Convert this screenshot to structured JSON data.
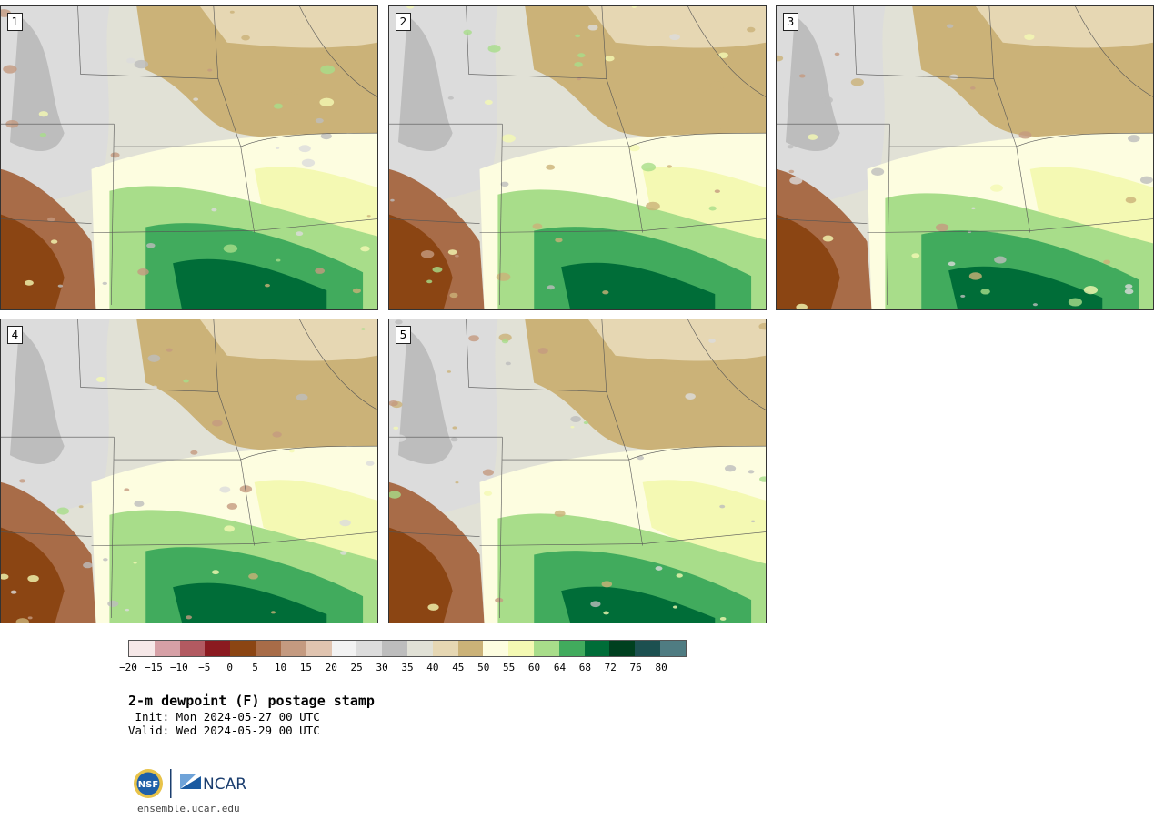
{
  "panels": [
    {
      "label": "1"
    },
    {
      "label": "2"
    },
    {
      "label": "3"
    },
    {
      "label": "4"
    },
    {
      "label": "5"
    }
  ],
  "colorbar": {
    "colors": [
      "#f6e8e8",
      "#d6a0a6",
      "#b25a61",
      "#8b1a20",
      "#8b4513",
      "#a86c48",
      "#c49a80",
      "#e0c4b0",
      "#f2f2f2",
      "#dcdcdc",
      "#bdbdbd",
      "#e1e1d6",
      "#e6d7b3",
      "#cbb278",
      "#fdfde0",
      "#f4f9b3",
      "#a8dd8a",
      "#41ab5d",
      "#006d38",
      "#00401f",
      "#1c5050",
      "#4f7c82"
    ],
    "ticks": [
      "−20",
      "−15",
      "−10",
      "−5",
      "0",
      "5",
      "10",
      "15",
      "20",
      "25",
      "30",
      "35",
      "40",
      "45",
      "50",
      "55",
      "60",
      "64",
      "68",
      "72",
      "76",
      "80"
    ]
  },
  "title": "2-m dewpoint (F) postage stamp",
  "init": " Init: Mon 2024-05-27 00 UTC",
  "valid": "Valid: Wed 2024-05-29 00 UTC",
  "logo": {
    "nsf": "NSF",
    "ncar": "NCAR"
  },
  "url": "ensemble.ucar.edu"
}
